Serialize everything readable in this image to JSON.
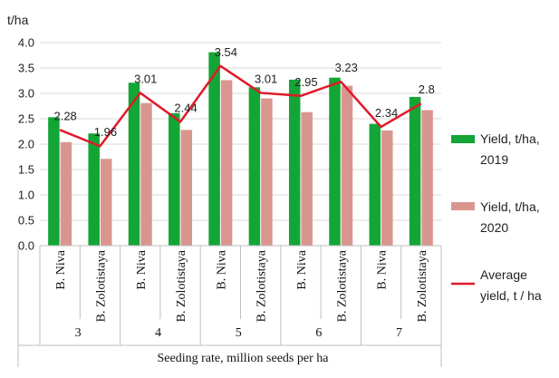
{
  "chart_data": {
    "type": "bar",
    "ylabel": "t/ha",
    "xlabel": "Seeding rate, million seeds per ha",
    "ylim": [
      0,
      4.0
    ],
    "yticks": [
      "0.0",
      "0.5",
      "1.0",
      "1.5",
      "2.0",
      "2.5",
      "3.0",
      "3.5",
      "4.0"
    ],
    "ytick_values": [
      0,
      0.5,
      1.0,
      1.5,
      2.0,
      2.5,
      3.0,
      3.5,
      4.0
    ],
    "categories": [
      "B. Niva",
      "B. Zolotistaya",
      "B. Niva",
      "B. Zolotistaya",
      "B. Niva",
      "B. Zolotistaya",
      "B. Niva",
      "B. Zolotistaya",
      "B. Niva",
      "B. Zolotistaya"
    ],
    "groups": [
      "3",
      "4",
      "5",
      "6",
      "7"
    ],
    "series": [
      {
        "name": "Yield, t/ha, 2019",
        "color": "#13a536",
        "values": [
          2.53,
          2.21,
          3.21,
          2.61,
          3.81,
          3.12,
          3.27,
          3.31,
          2.4,
          2.93
        ]
      },
      {
        "name": "Yield, t/ha, 2020",
        "color": "#d9968f",
        "values": [
          2.04,
          1.71,
          2.81,
          2.28,
          3.26,
          2.9,
          2.63,
          3.15,
          2.27,
          2.67
        ]
      },
      {
        "name": "Average yield, t / ha",
        "type": "line",
        "color": "#e0192a",
        "values": [
          2.28,
          1.96,
          3.01,
          2.44,
          3.54,
          3.01,
          2.95,
          3.23,
          2.34,
          2.8
        ]
      }
    ],
    "data_labels": [
      "2.28",
      "1.96",
      "3.01",
      "2.44",
      "3.54",
      "3.01",
      "2.95",
      "3.23",
      "2.34",
      "2.8"
    ],
    "legend": {
      "position": "right",
      "entries": [
        {
          "lines": [
            "Yield, t/ha,",
            "2019"
          ]
        },
        {
          "lines": [
            "Yield, t/ha,",
            "2020"
          ]
        },
        {
          "lines": [
            "Average",
            "yield, t / ha"
          ]
        }
      ]
    }
  }
}
